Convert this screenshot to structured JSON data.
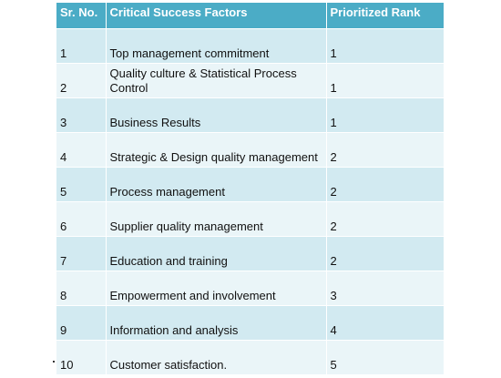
{
  "table": {
    "headers": [
      "Sr. No.",
      "Critical Success Factors",
      "Prioritized Rank"
    ],
    "rows": [
      {
        "sr": "1",
        "factor": "Top management commitment",
        "rank": "1"
      },
      {
        "sr": "2",
        "factor": "Quality culture & Statistical Process Control",
        "rank": "1"
      },
      {
        "sr": "3",
        "factor": "Business Results",
        "rank": "1"
      },
      {
        "sr": "4",
        "factor": "Strategic  & Design quality management",
        "rank": "2"
      },
      {
        "sr": "5",
        "factor": "Process management",
        "rank": "2"
      },
      {
        "sr": "6",
        "factor": "Supplier quality management",
        "rank": "2"
      },
      {
        "sr": "7",
        "factor": "Education and training",
        "rank": "2"
      },
      {
        "sr": "8",
        "factor": "Empowerment and involvement",
        "rank": "3"
      },
      {
        "sr": "9",
        "factor": "Information and analysis",
        "rank": "4"
      },
      {
        "sr": "10",
        "factor": "Customer satisfaction.",
        "rank": "5"
      }
    ]
  },
  "colors": {
    "header_bg": "#4bacc6",
    "row_odd_bg": "#d2eaf1",
    "row_even_bg": "#eaf5f8"
  }
}
